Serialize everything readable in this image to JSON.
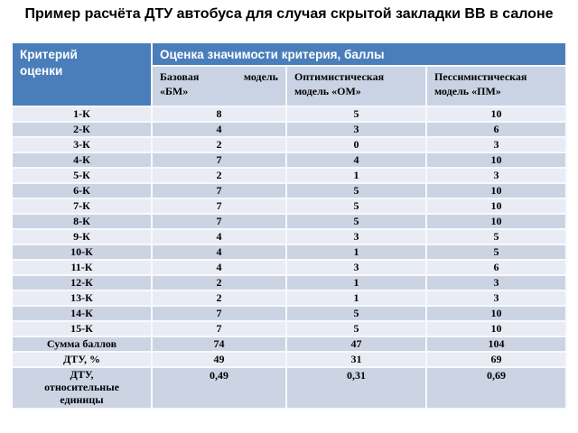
{
  "title": "Пример расчёта ДТУ автобуса для случая скрытой закладки ВВ в салоне",
  "table": {
    "header": {
      "criterion": "Критерий оценки",
      "group": "Оценка значимости критерия, баллы",
      "models": [
        [
          "Базовая модель",
          "«БМ»"
        ],
        [
          "Оптимистическая",
          "модель «ОМ»"
        ],
        [
          "Пессимистическая",
          "модель «ПМ»"
        ]
      ]
    },
    "rows": [
      {
        "label": "1-К",
        "bm": "8",
        "om": "5",
        "pm": "10"
      },
      {
        "label": "2-К",
        "bm": "4",
        "om": "3",
        "pm": "6"
      },
      {
        "label": "3-К",
        "bm": "2",
        "om": "0",
        "pm": "3"
      },
      {
        "label": "4-К",
        "bm": "7",
        "om": "4",
        "pm": "10"
      },
      {
        "label": "5-К",
        "bm": "2",
        "om": "1",
        "pm": "3"
      },
      {
        "label": "6-К",
        "bm": "7",
        "om": "5",
        "pm": "10"
      },
      {
        "label": "7-К",
        "bm": "7",
        "om": "5",
        "pm": "10"
      },
      {
        "label": "8-К",
        "bm": "7",
        "om": "5",
        "pm": "10"
      },
      {
        "label": "9-К",
        "bm": "4",
        "om": "3",
        "pm": "5"
      },
      {
        "label": "10-К",
        "bm": "4",
        "om": "1",
        "pm": "5"
      },
      {
        "label": "11-К",
        "bm": "4",
        "om": "3",
        "pm": "6"
      },
      {
        "label": "12-К",
        "bm": "2",
        "om": "1",
        "pm": "3"
      },
      {
        "label": "13-К",
        "bm": "2",
        "om": "1",
        "pm": "3"
      },
      {
        "label": "14-К",
        "bm": "7",
        "om": "5",
        "pm": "10"
      },
      {
        "label": "15-К",
        "bm": "7",
        "om": "5",
        "pm": "10"
      }
    ],
    "summary": [
      {
        "label": "Сумма баллов",
        "bm": "74",
        "om": "47",
        "pm": "104"
      },
      {
        "label": "ДТУ, %",
        "bm": "49",
        "om": "31",
        "pm": "69"
      },
      {
        "label": "ДТУ, относительные единицы",
        "bm": "0,49",
        "om": "0,31",
        "pm": "0,69"
      }
    ]
  },
  "colors": {
    "header_bg": "#4a7ebb",
    "header_text": "#ffffff",
    "subheader_bg": "#c9d3e3",
    "band_light": "#e9ecf4",
    "band_dark": "#ccd4e4",
    "separator": "#f7f9fc",
    "text": "#000000"
  }
}
